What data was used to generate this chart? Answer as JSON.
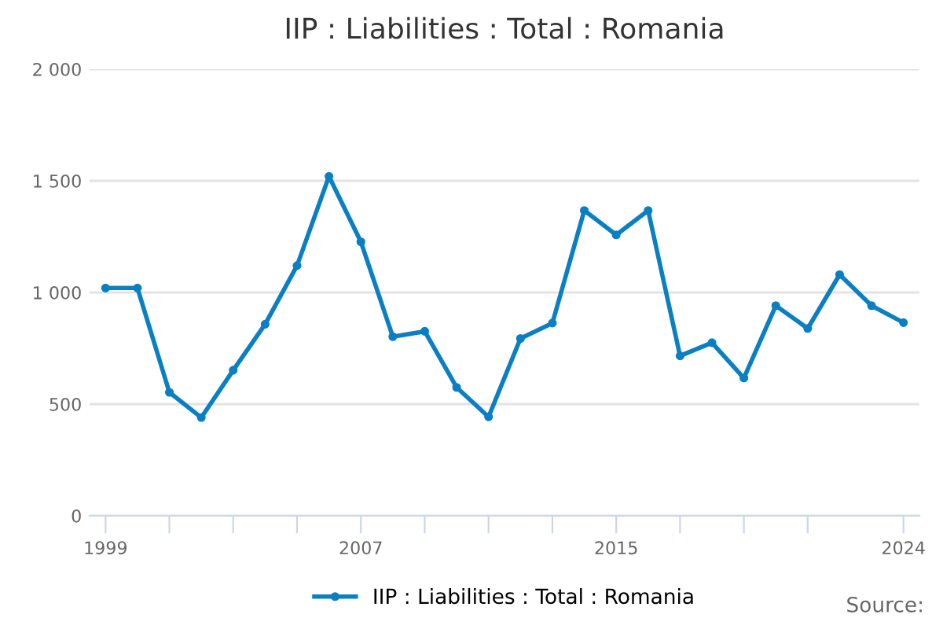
{
  "chart_data": {
    "type": "line",
    "title": "IIP : Liabilities : Total : Romania",
    "x": [
      1999,
      2000,
      2001,
      2002,
      2003,
      2004,
      2005,
      2006,
      2007,
      2008,
      2009,
      2010,
      2011,
      2012,
      2013,
      2014,
      2015,
      2016,
      2017,
      2018,
      2019,
      2020,
      2021,
      2022,
      2023,
      2024
    ],
    "series": [
      {
        "name": "IIP : Liabilities : Total : Romania",
        "color": "#0a7fc2",
        "values": [
          1020,
          1020,
          553,
          440,
          652,
          858,
          1120,
          1520,
          1227,
          802,
          826,
          575,
          443,
          794,
          863,
          1367,
          1258,
          1367,
          716,
          775,
          617,
          941,
          839,
          1080,
          941,
          865
        ]
      }
    ],
    "xlim": [
      1998.5,
      2024.5
    ],
    "xticks": [
      1999,
      {
        "value": 2001,
        "label": null
      },
      {
        "value": 2003,
        "label": null
      },
      {
        "value": 2005,
        "label": null
      },
      2007,
      {
        "value": 2009,
        "label": null
      },
      {
        "value": 2011,
        "label": null
      },
      {
        "value": 2013,
        "label": null
      },
      2015,
      {
        "value": 2017,
        "label": null
      },
      {
        "value": 2019,
        "label": null
      },
      {
        "value": 2021,
        "label": null
      },
      2024
    ],
    "ylim": [
      0,
      2000
    ],
    "yticks": [
      0,
      500,
      {
        "value": 1000,
        "label": "1 000"
      },
      {
        "value": 1500,
        "label": "1 500"
      },
      {
        "value": 2000,
        "label": "2 000"
      }
    ],
    "grid": "y",
    "legend": "bottom",
    "marker": "circle",
    "line_style": "solid",
    "annotations": [
      "Source:"
    ]
  }
}
